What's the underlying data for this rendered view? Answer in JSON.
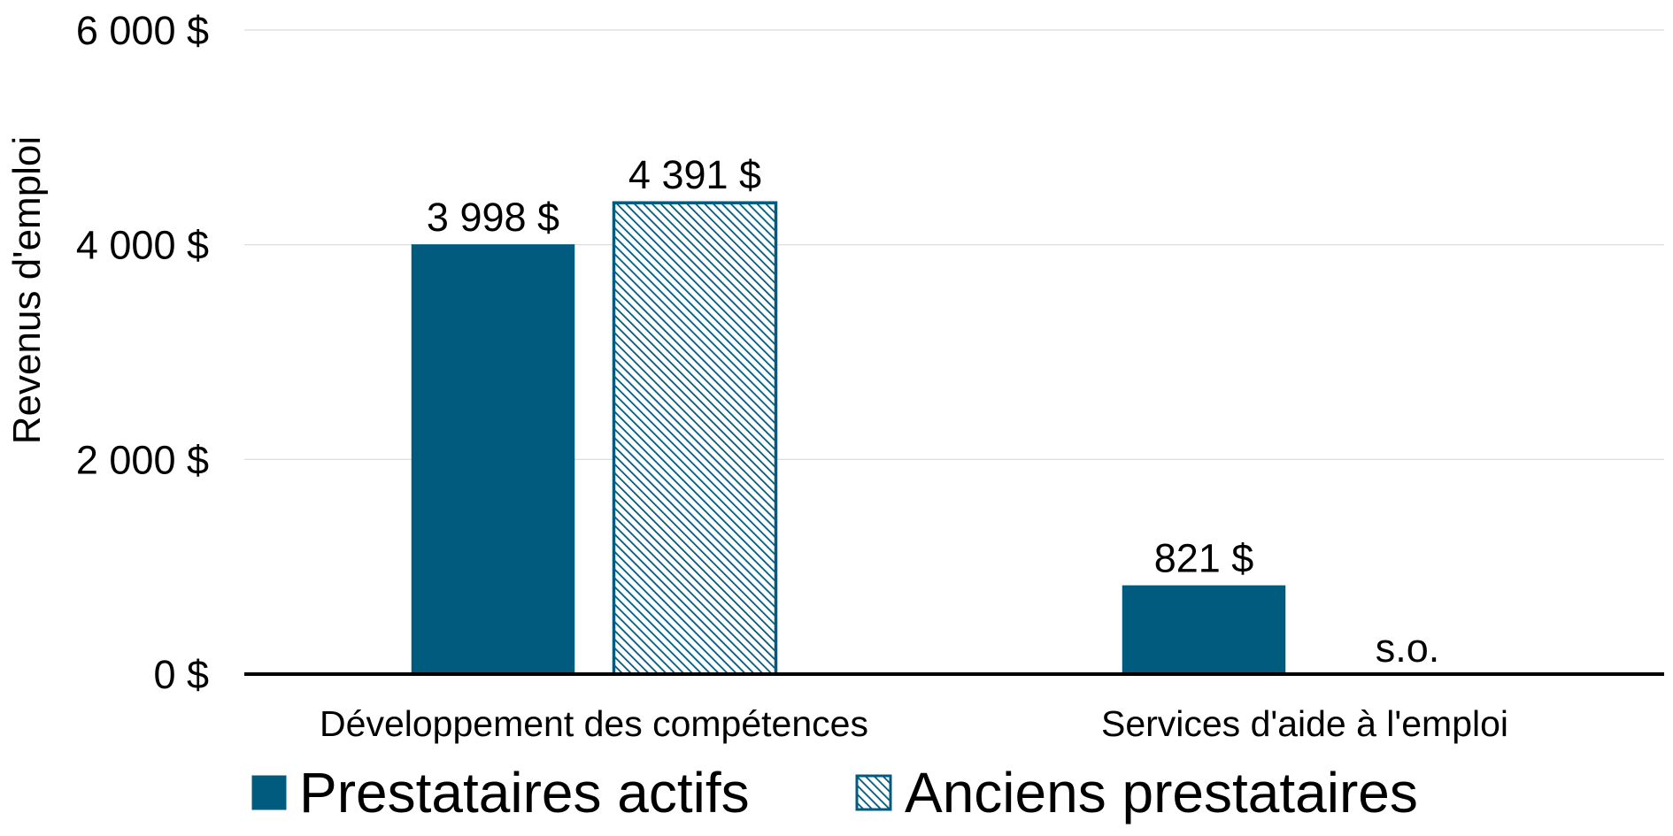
{
  "chart_data": {
    "type": "bar",
    "title": "",
    "xlabel": "",
    "ylabel": "Revenus d'emploi",
    "ylim": [
      0,
      6000
    ],
    "yticks": [
      {
        "value": 0,
        "label": "0 $"
      },
      {
        "value": 2000,
        "label": "2 000 $"
      },
      {
        "value": 4000,
        "label": "4 000 $"
      },
      {
        "value": 6000,
        "label": "6 000 $"
      }
    ],
    "grid": true,
    "legend_position": "bottom",
    "categories": [
      "Développement des compétences",
      "Services d'aide à l'emploi"
    ],
    "series": [
      {
        "name": "Prestataires actifs",
        "values": [
          3998,
          821
        ],
        "labels": [
          "3 998 $",
          "821 $"
        ],
        "color": "#005B7F",
        "pattern": "solid"
      },
      {
        "name": "Anciens prestataires",
        "values": [
          4391,
          null
        ],
        "labels": [
          "4 391 $",
          "s.o."
        ],
        "color": "#005B7F",
        "pattern": "hatched"
      }
    ]
  }
}
